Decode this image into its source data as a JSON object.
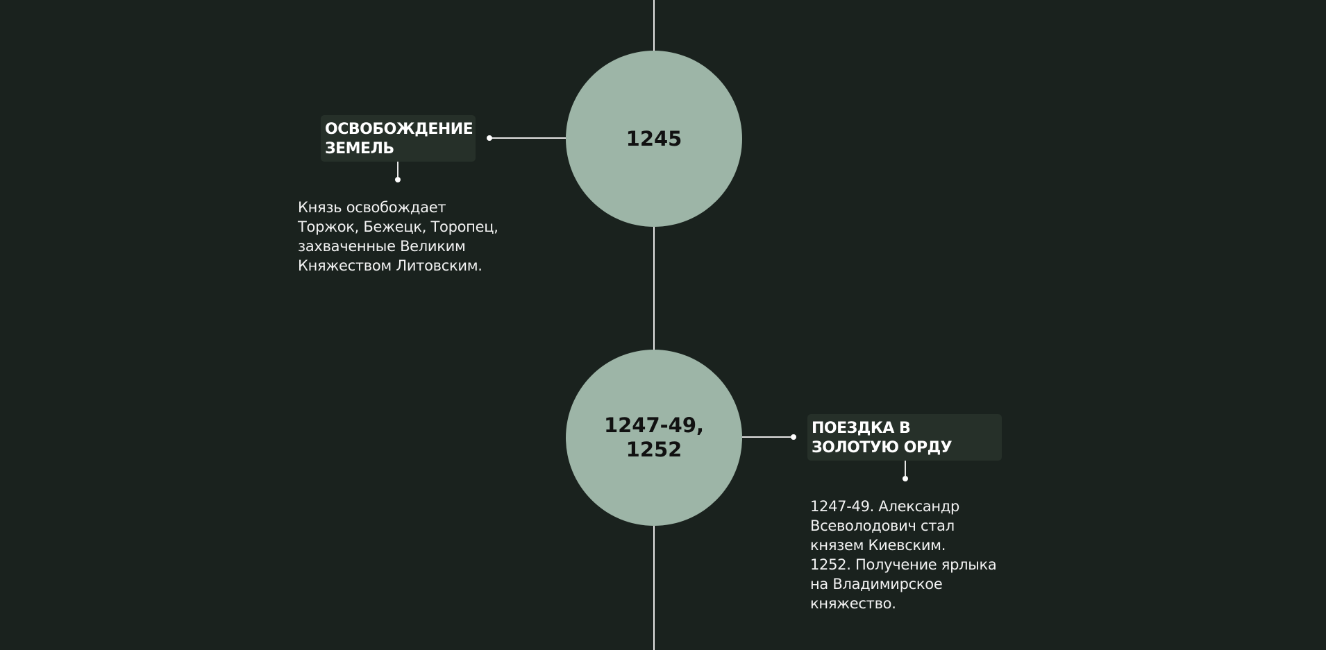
{
  "timeline": {
    "events": [
      {
        "year": "1245",
        "title": "ОСВОБОЖДЕНИЕ ЗЕМЕЛЬ",
        "description": "Князь освобождает Торжок, Бежецк, Торопец, захваченные Великим Княжеством Литовским."
      },
      {
        "year": "1247-49,\n1252",
        "title": "ПОЕЗДКА В ЗОЛОТУЮ ОРДУ",
        "description_lines": [
          "1247-49. Александр Всеволодович стал князем Киевским.",
          "1252. Получение ярлыка на Владимирское княжество."
        ]
      }
    ]
  },
  "colors": {
    "background": "#1a221e",
    "circle": "#9db5a7",
    "tag_background": "#263029",
    "line": "#e6e6e6"
  }
}
